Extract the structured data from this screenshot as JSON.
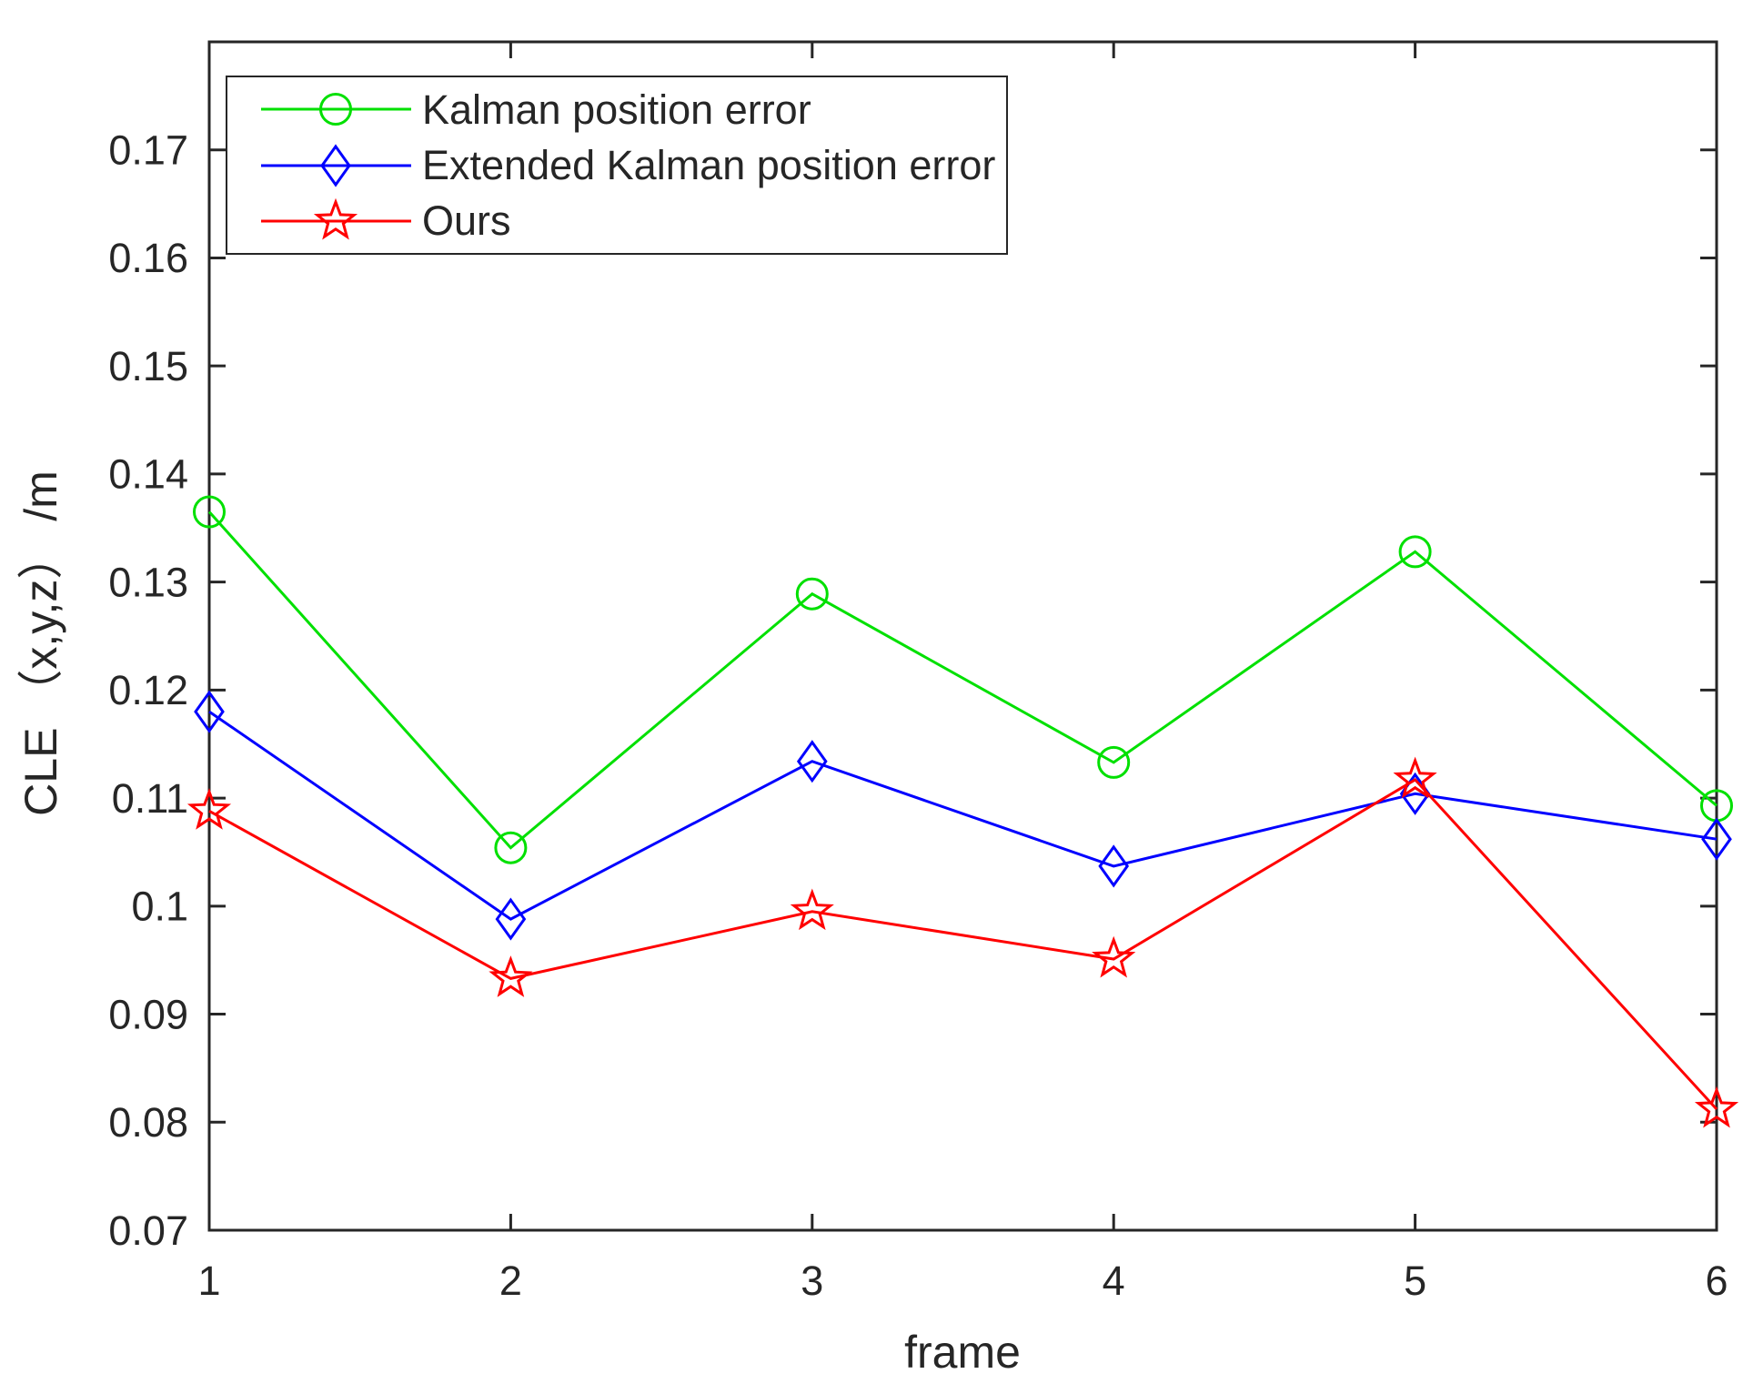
{
  "figure": {
    "background": "#FFFFFF"
  },
  "chart_data": {
    "type": "line",
    "title": "",
    "xlabel": "frame",
    "ylabel": "CLE （x,y,z） /m",
    "x": [
      1,
      2,
      3,
      4,
      5,
      6
    ],
    "xlim": [
      1,
      6
    ],
    "ylim": [
      0.07,
      0.18
    ],
    "x_tick_labels": [
      "1",
      "2",
      "3",
      "4",
      "5",
      "6"
    ],
    "y_tick_values": [
      0.07,
      0.08,
      0.09,
      0.1,
      0.11,
      0.12,
      0.13,
      0.14,
      0.15,
      0.16,
      0.17
    ],
    "y_tick_labels": [
      "0.07",
      "0.08",
      "0.09",
      "0.1",
      "0.11",
      "0.12",
      "0.13",
      "0.14",
      "0.15",
      "0.16",
      "0.17"
    ],
    "grid": false,
    "axis_color": "#262626",
    "legend": {
      "position": "top-left-inside",
      "border_color": "#262626",
      "background": "#FFFFFF"
    },
    "series": [
      {
        "name": "Kalman position error",
        "color": "#00E000",
        "marker": "circle",
        "values": [
          0.1365,
          0.1054,
          0.1289,
          0.1133,
          0.1328,
          0.1093
        ]
      },
      {
        "name": "Extended Kalman position error",
        "color": "#0000FF",
        "marker": "diamond",
        "values": [
          0.118,
          0.0988,
          0.1134,
          0.1037,
          0.1104,
          0.1062
        ]
      },
      {
        "name": "Ours",
        "color": "#FF0000",
        "marker": "star",
        "values": [
          0.1088,
          0.0933,
          0.0995,
          0.0951,
          0.1117,
          0.0812
        ]
      }
    ]
  }
}
